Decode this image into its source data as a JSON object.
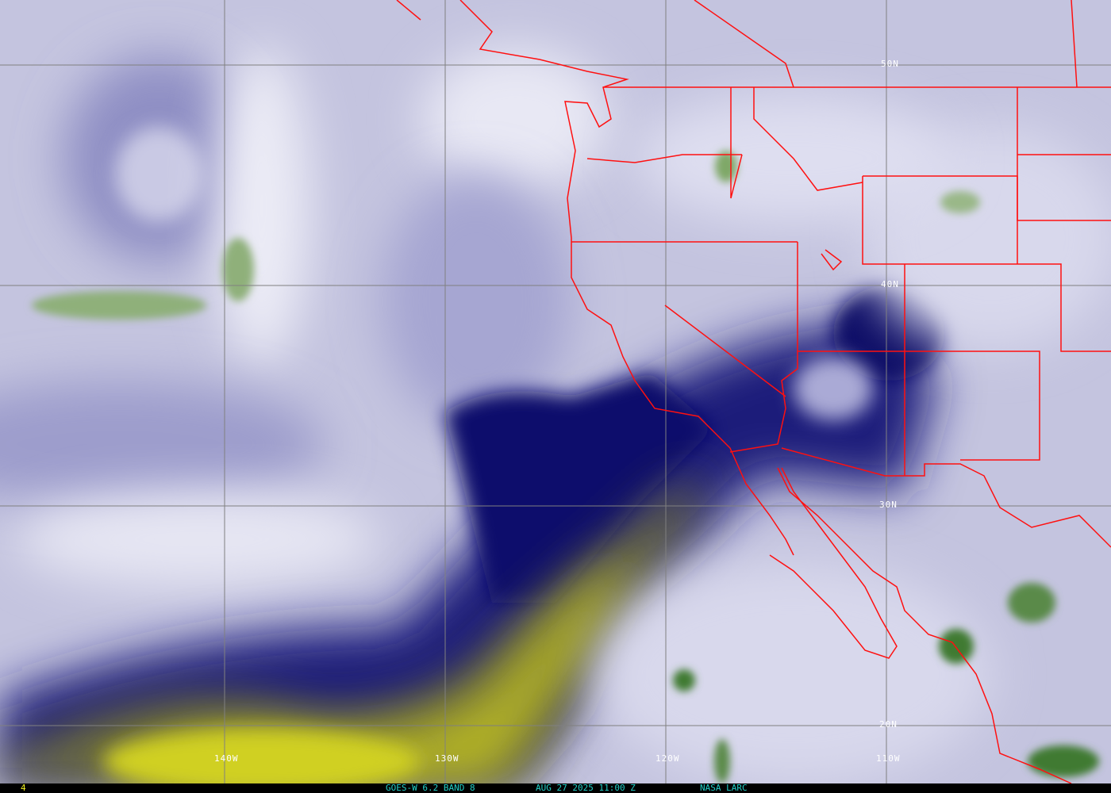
{
  "map": {
    "colors": {
      "background": "#c9c9e2",
      "moisture_dark": "#10106e",
      "dry_yellow": "#c8c820",
      "cloud_white": "#f2f2fa",
      "convection_green": "#4a8a3a",
      "boundaries": "#ff1010",
      "grid": "#808080",
      "status_text": "#22d0c8",
      "frame_number": "#f0f020"
    },
    "lat_labels": [
      "50N",
      "40N",
      "30N",
      "20N"
    ],
    "lon_labels": [
      "140W",
      "130W",
      "120W",
      "110W"
    ]
  },
  "status": {
    "frame_number": "4",
    "satellite": "GOES-W 6.2 BAND 8",
    "timestamp": "AUG 27 2025 11:00 Z",
    "source": "NASA LARC"
  }
}
